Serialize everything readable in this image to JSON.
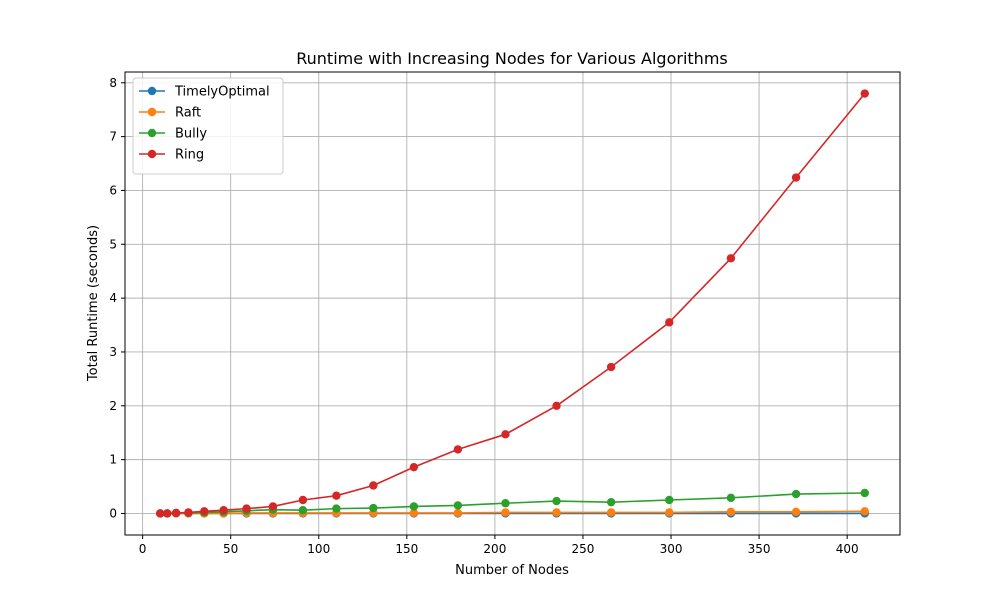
{
  "chart_data": {
    "type": "line",
    "title": "Runtime with Increasing Nodes for Various Algorithms",
    "xlabel": "Number of Nodes",
    "ylabel": "Total Runtime (seconds)",
    "xlim": [
      -10,
      430
    ],
    "ylim": [
      -0.4,
      8.2
    ],
    "xticks": [
      0,
      50,
      100,
      150,
      200,
      250,
      300,
      350,
      400
    ],
    "yticks": [
      0,
      1,
      2,
      3,
      4,
      5,
      6,
      7,
      8
    ],
    "grid": true,
    "legend_position": "top-left",
    "x": [
      10,
      14,
      19,
      26,
      35,
      46,
      59,
      74,
      91,
      110,
      131,
      154,
      179,
      206,
      235,
      266,
      299,
      334,
      371,
      410
    ],
    "series": [
      {
        "name": "TimelyOptimal",
        "color": "#1f77b4",
        "values": [
          0.0,
          0.0,
          0.0,
          0.0,
          0.0,
          0.0,
          0.0,
          0.0,
          0.0,
          0.0,
          0.0,
          0.0,
          0.0,
          0.0,
          0.0,
          0.0,
          0.0,
          0.0,
          0.0,
          0.0
        ]
      },
      {
        "name": "Raft",
        "color": "#ff7f0e",
        "values": [
          0.0,
          0.0,
          0.0,
          0.0,
          0.0,
          0.0,
          0.01,
          0.01,
          0.01,
          0.01,
          0.01,
          0.01,
          0.01,
          0.02,
          0.02,
          0.02,
          0.02,
          0.03,
          0.03,
          0.04
        ]
      },
      {
        "name": "Bully",
        "color": "#2ca02c",
        "values": [
          0.0,
          0.0,
          0.01,
          0.01,
          0.02,
          0.03,
          0.05,
          0.07,
          0.06,
          0.09,
          0.1,
          0.13,
          0.15,
          0.19,
          0.23,
          0.21,
          0.25,
          0.29,
          0.36,
          0.38
        ]
      },
      {
        "name": "Ring",
        "color": "#d62728",
        "values": [
          0.0,
          0.0,
          0.01,
          0.02,
          0.04,
          0.06,
          0.09,
          0.13,
          0.25,
          0.33,
          0.52,
          0.86,
          1.19,
          1.47,
          2.0,
          2.72,
          3.55,
          4.74,
          6.24,
          7.8
        ]
      }
    ]
  }
}
